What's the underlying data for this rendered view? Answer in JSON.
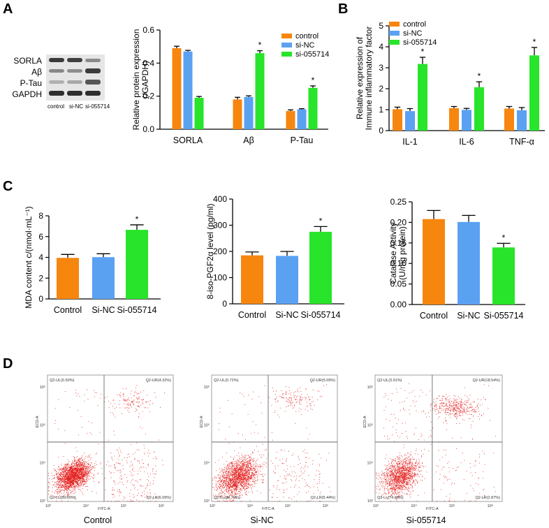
{
  "panels": {
    "a": "A",
    "b": "B",
    "c": "C",
    "d": "D"
  },
  "colors": {
    "control": "#f7860f",
    "sinc": "#5aa1f2",
    "si055714": "#28e42a",
    "dot": "#e3201e"
  },
  "western_blot": {
    "rows": [
      "SORLA",
      "Aβ",
      "P-Tau",
      "GAPDH"
    ],
    "lanes": [
      "control",
      "si-NC",
      "si-055714"
    ]
  },
  "chart_data": [
    {
      "id": "A",
      "type": "bar",
      "ylabel": "Relative protein expression (/GAPDH)",
      "ylabel_lines": [
        "Relative protein expression",
        "(/GAPDH)"
      ],
      "ylim": [
        0,
        0.6
      ],
      "yticks": [
        "0.0",
        "0.2",
        "0.4",
        "0.6"
      ],
      "categories": [
        "SORLA",
        "Aβ",
        "P-Tau"
      ],
      "legend": [
        "control",
        "si-NC",
        "si-055714"
      ],
      "series": [
        {
          "name": "control",
          "values": [
            0.49,
            0.18,
            0.11
          ],
          "errors": [
            0.012,
            0.013,
            0.007
          ]
        },
        {
          "name": "si-NC",
          "values": [
            0.47,
            0.195,
            0.12
          ],
          "errors": [
            0.007,
            0.007,
            0.004
          ]
        },
        {
          "name": "si-055714",
          "values": [
            0.19,
            0.46,
            0.25
          ],
          "errors": [
            0.008,
            0.015,
            0.012
          ]
        }
      ],
      "annotations": [
        "*",
        "*"
      ]
    },
    {
      "id": "B",
      "type": "bar",
      "ylabel": "Relative expression of Immune inflammatory factor",
      "ylabel_lines": [
        "Relative expression of",
        "Immune inflammatory factor"
      ],
      "ylim": [
        0,
        5
      ],
      "yticks": [
        "0",
        "1",
        "2",
        "3",
        "4",
        "5"
      ],
      "categories": [
        "IL-1",
        "IL-6",
        "TNF-α"
      ],
      "legend": [
        "control",
        "si-NC",
        "si-055714"
      ],
      "series": [
        {
          "name": "control",
          "values": [
            1.02,
            1.07,
            1.05
          ],
          "errors": [
            0.1,
            0.08,
            0.1
          ]
        },
        {
          "name": "si-NC",
          "values": [
            0.93,
            0.99,
            0.97
          ],
          "errors": [
            0.12,
            0.07,
            0.13
          ]
        },
        {
          "name": "si-055714",
          "values": [
            3.18,
            2.07,
            3.59
          ],
          "errors": [
            0.32,
            0.26,
            0.38
          ]
        }
      ],
      "annotations": [
        "*",
        "*",
        "*"
      ]
    },
    {
      "id": "C1",
      "type": "bar",
      "ylabel": "MDA content c/(nmol·mL⁻¹)",
      "ylim": [
        0,
        8
      ],
      "yticks": [
        "0",
        "2",
        "4",
        "6",
        "8"
      ],
      "categories": [
        "Control",
        "Si-NC",
        "Si-055714"
      ],
      "values": [
        3.95,
        4.02,
        6.65
      ],
      "errors": [
        0.33,
        0.33,
        0.48
      ],
      "annotations": [
        "*"
      ]
    },
    {
      "id": "C2",
      "type": "bar",
      "ylabel": "8-iso-PGF2α level (pg/ml)",
      "ylim": [
        0,
        400
      ],
      "yticks": [
        "0",
        "100",
        "200",
        "300",
        "400"
      ],
      "categories": [
        "Control",
        "Si-NC",
        "Si-055714"
      ],
      "values": [
        185,
        183,
        275
      ],
      "errors": [
        13,
        17,
        20
      ],
      "annotations": [
        "*"
      ]
    },
    {
      "id": "C3",
      "type": "bar",
      "ylabel": "Catalase Activity (U/mg protein)",
      "ylabel_lines": [
        "Catalase Activity",
        "(U/mg protein)"
      ],
      "ylim": [
        0,
        0.25
      ],
      "yticks": [
        "0.00",
        "0.05",
        "0.10",
        "0.15",
        "0.20",
        "0.25"
      ],
      "categories": [
        "Control",
        "Si-NC",
        "Si-055714"
      ],
      "values": [
        0.208,
        0.201,
        0.139
      ],
      "errors": [
        0.021,
        0.016,
        0.01
      ],
      "annotations": [
        "*"
      ]
    },
    {
      "id": "D",
      "type": "scatter",
      "subtype": "flow-cytometry",
      "xlabel": "FITC-A",
      "ylabel": "ECD-A",
      "ticks": [
        "10³",
        "10⁴",
        "10⁵",
        "10⁶"
      ],
      "plots": [
        {
          "name": "Control",
          "quadrants": {
            "UL": "Q2-UL(0.50%)",
            "UR": "Q2-UR(4.32%)",
            "LL": "Q2-LL(89.09%)",
            "LR": "Q2-LR(6.09%)"
          }
        },
        {
          "name": "Si-NC",
          "quadrants": {
            "UL": "Q2-UL(0.72%)",
            "UR": "Q2-UR(5.09%)",
            "LL": "Q2-LL(88.76%)",
            "LR": "Q2-LR(5.44%)"
          }
        },
        {
          "name": "Si-055714",
          "quadrants": {
            "UL": "Q2-UL(3.91%)",
            "UR": "Q2-UR(18.54%)",
            "LL": "Q2-LL(74.68%)",
            "LR": "Q2-LR(2.87%)"
          }
        }
      ]
    }
  ]
}
